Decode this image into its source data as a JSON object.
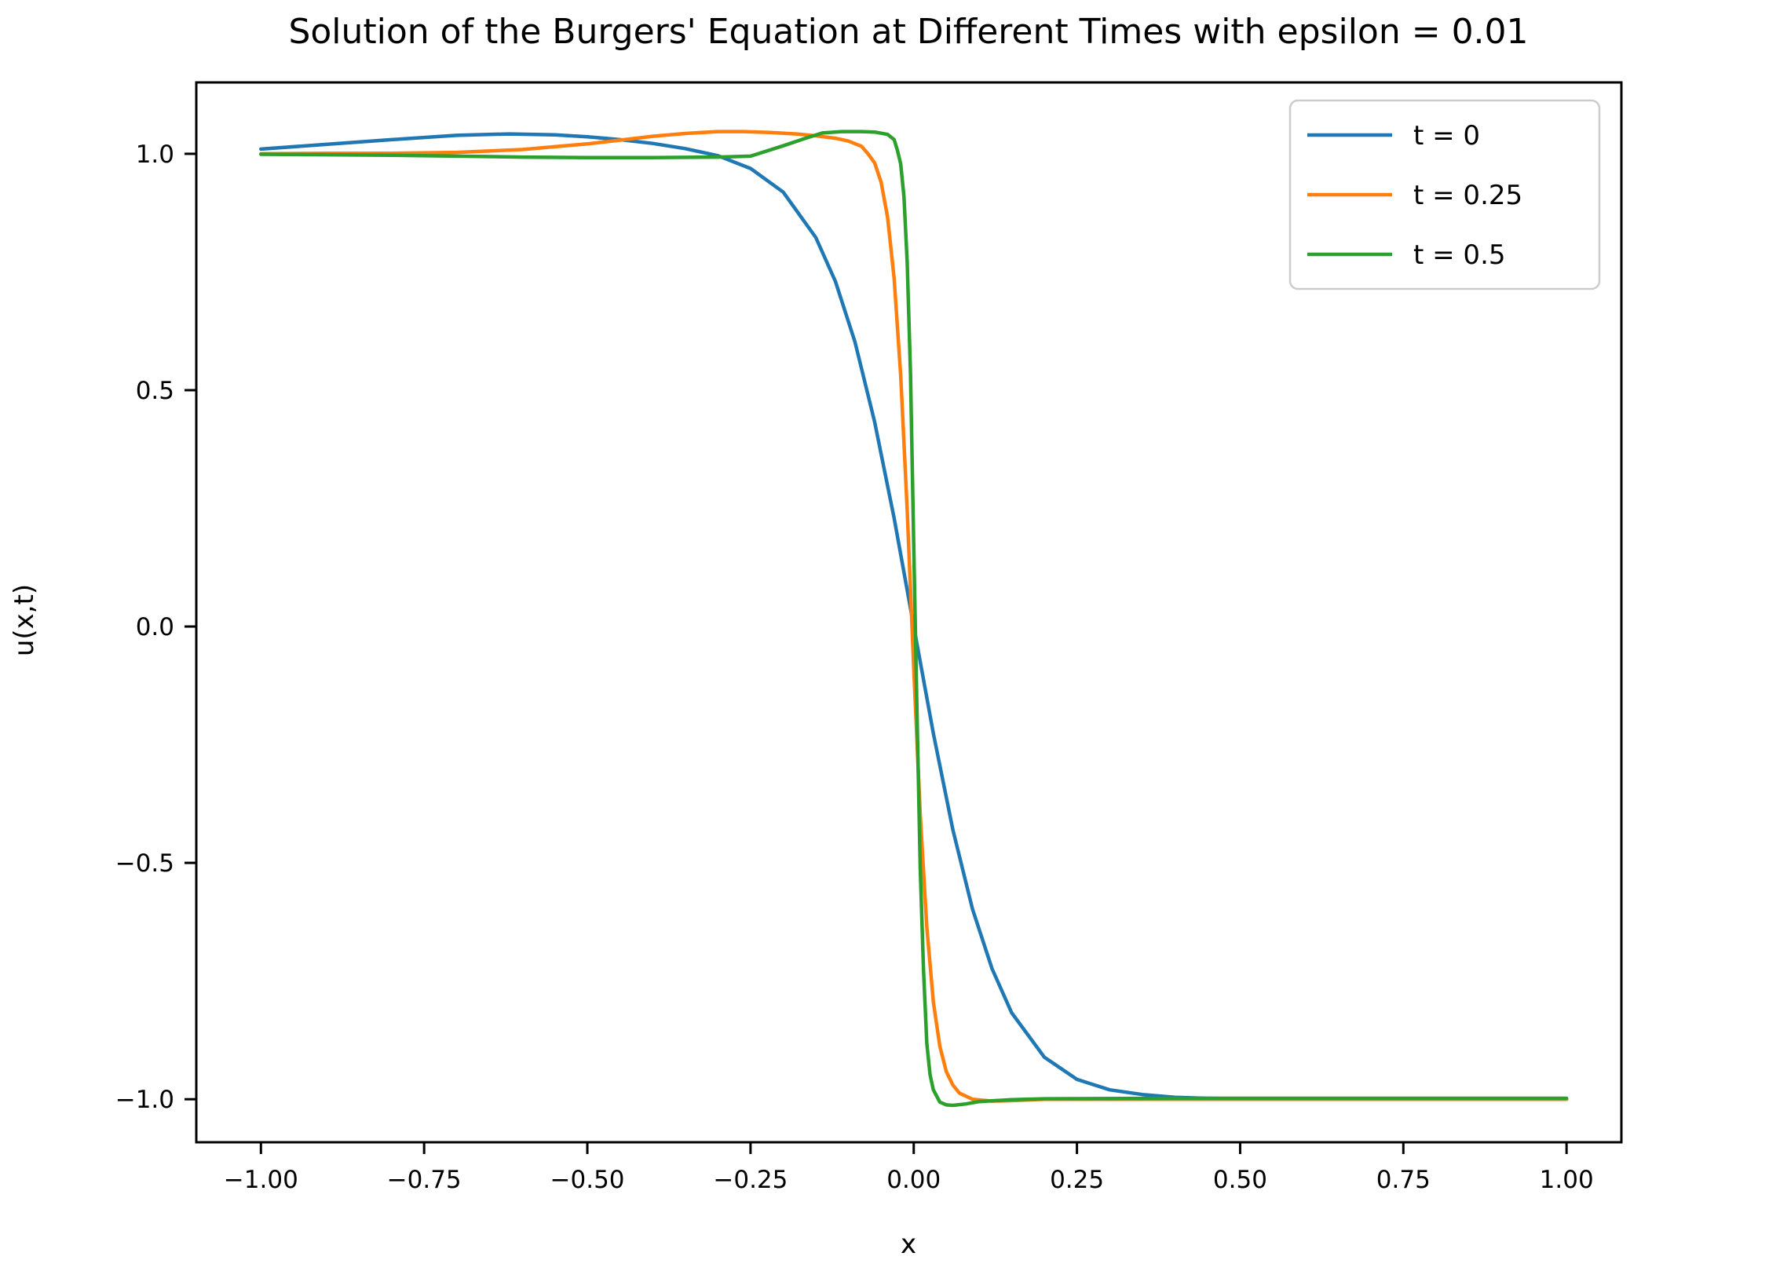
{
  "title": "Solution of the Burgers' Equation at Different Times with epsilon = 0.01",
  "axes": {
    "xlabel": "x",
    "ylabel": "u(x,t)"
  },
  "legend": {
    "items": [
      {
        "label": "t = 0",
        "color": "#1f77b4"
      },
      {
        "label": "t = 0.25",
        "color": "#ff7f0e"
      },
      {
        "label": "t = 0.5",
        "color": "#2ca02c"
      }
    ]
  },
  "chart_data": {
    "type": "line",
    "title": "Solution of the Burgers' Equation at Different Times with epsilon = 0.01",
    "xlabel": "x",
    "ylabel": "u(x,t)",
    "xlim": [
      -1.099,
      1.084
    ],
    "ylim": [
      -1.091,
      1.151
    ],
    "grid": false,
    "legend_position": "upper right",
    "background": "#ffffff",
    "spine_color": "#000000",
    "x_ticks": {
      "values": [
        -1.0,
        -0.75,
        -0.5,
        -0.25,
        0.0,
        0.25,
        0.5,
        0.75,
        1.0
      ],
      "labels": [
        "−1.00",
        "−0.75",
        "−0.50",
        "−0.25",
        "0.00",
        "0.25",
        "0.50",
        "0.75",
        "1.00"
      ]
    },
    "y_ticks": {
      "values": [
        1.0,
        0.5,
        0.0,
        -0.5,
        -1.0
      ],
      "labels": [
        "1.0",
        "0.5",
        "0.0",
        "−0.5",
        "−1.0"
      ]
    },
    "series": [
      {
        "name": "t = 0",
        "color": "#1f77b4",
        "points": [
          [
            -1,
            1.01
          ],
          [
            -0.9,
            1.02
          ],
          [
            -0.8,
            1.03
          ],
          [
            -0.7,
            1.039
          ],
          [
            -0.62,
            1.042
          ],
          [
            -0.55,
            1.04
          ],
          [
            -0.5,
            1.036
          ],
          [
            -0.45,
            1.03
          ],
          [
            -0.4,
            1.022
          ],
          [
            -0.35,
            1.011
          ],
          [
            -0.3,
            0.996
          ],
          [
            -0.25,
            0.969
          ],
          [
            -0.2,
            0.919
          ],
          [
            -0.15,
            0.823
          ],
          [
            -0.12,
            0.73
          ],
          [
            -0.09,
            0.602
          ],
          [
            -0.06,
            0.433
          ],
          [
            -0.03,
            0.229
          ],
          [
            0,
            0.001
          ],
          [
            0.03,
            -0.226
          ],
          [
            0.06,
            -0.43
          ],
          [
            0.09,
            -0.598
          ],
          [
            0.12,
            -0.724
          ],
          [
            0.15,
            -0.817
          ],
          [
            0.2,
            -0.911
          ],
          [
            0.25,
            -0.958
          ],
          [
            0.3,
            -0.98
          ],
          [
            0.35,
            -0.99
          ],
          [
            0.4,
            -0.996
          ],
          [
            0.45,
            -0.998
          ],
          [
            0.5,
            -0.999
          ],
          [
            0.6,
            -1.0
          ],
          [
            0.8,
            -1.0
          ],
          [
            1,
            -1.0
          ]
        ]
      },
      {
        "name": "t = 0.25",
        "color": "#ff7f0e",
        "points": [
          [
            -1,
            1.0
          ],
          [
            -0.9,
            1.001
          ],
          [
            -0.8,
            1.001
          ],
          [
            -0.7,
            1.003
          ],
          [
            -0.6,
            1.009
          ],
          [
            -0.5,
            1.021
          ],
          [
            -0.45,
            1.029
          ],
          [
            -0.4,
            1.037
          ],
          [
            -0.35,
            1.043
          ],
          [
            -0.3,
            1.047
          ],
          [
            -0.26,
            1.047
          ],
          [
            -0.22,
            1.045
          ],
          [
            -0.18,
            1.042
          ],
          [
            -0.15,
            1.038
          ],
          [
            -0.12,
            1.033
          ],
          [
            -0.1,
            1.027
          ],
          [
            -0.08,
            1.016
          ],
          [
            -0.07,
            1.0
          ],
          [
            -0.06,
            0.981
          ],
          [
            -0.05,
            0.94
          ],
          [
            -0.04,
            0.865
          ],
          [
            -0.03,
            0.736
          ],
          [
            -0.02,
            0.532
          ],
          [
            -0.01,
            0.247
          ],
          [
            0,
            -0.087
          ],
          [
            0.01,
            -0.397
          ],
          [
            0.02,
            -0.636
          ],
          [
            0.03,
            -0.794
          ],
          [
            0.04,
            -0.888
          ],
          [
            0.05,
            -0.942
          ],
          [
            0.06,
            -0.97
          ],
          [
            0.07,
            -0.987
          ],
          [
            0.09,
            -1.0
          ],
          [
            0.12,
            -1.004
          ],
          [
            0.15,
            -1.003
          ],
          [
            0.2,
            -1.0
          ],
          [
            0.3,
            -1.0
          ],
          [
            0.5,
            -1.0
          ],
          [
            0.75,
            -1.0
          ],
          [
            1,
            -1.0
          ]
        ]
      },
      {
        "name": "t = 0.5",
        "color": "#2ca02c",
        "points": [
          [
            -1,
            0.999
          ],
          [
            -0.8,
            0.997
          ],
          [
            -0.6,
            0.993
          ],
          [
            -0.5,
            0.992
          ],
          [
            -0.4,
            0.992
          ],
          [
            -0.3,
            0.993
          ],
          [
            -0.25,
            0.995
          ],
          [
            -0.2,
            1.017
          ],
          [
            -0.17,
            1.031
          ],
          [
            -0.14,
            1.044
          ],
          [
            -0.11,
            1.047
          ],
          [
            -0.08,
            1.047
          ],
          [
            -0.06,
            1.046
          ],
          [
            -0.04,
            1.041
          ],
          [
            -0.03,
            1.03
          ],
          [
            -0.025,
            1.007
          ],
          [
            -0.02,
            0.979
          ],
          [
            -0.015,
            0.909
          ],
          [
            -0.01,
            0.771
          ],
          [
            -0.005,
            0.537
          ],
          [
            0,
            0.175
          ],
          [
            0.005,
            -0.182
          ],
          [
            0.01,
            -0.51
          ],
          [
            0.015,
            -0.727
          ],
          [
            0.02,
            -0.882
          ],
          [
            0.025,
            -0.948
          ],
          [
            0.03,
            -0.98
          ],
          [
            0.04,
            -1.006
          ],
          [
            0.05,
            -1.012
          ],
          [
            0.06,
            -1.013
          ],
          [
            0.08,
            -1.01
          ],
          [
            0.1,
            -1.005
          ],
          [
            0.15,
            -1.001
          ],
          [
            0.2,
            -0.999
          ],
          [
            0.4,
            -0.998
          ],
          [
            0.7,
            -0.998
          ],
          [
            1,
            -0.998
          ]
        ]
      }
    ]
  }
}
